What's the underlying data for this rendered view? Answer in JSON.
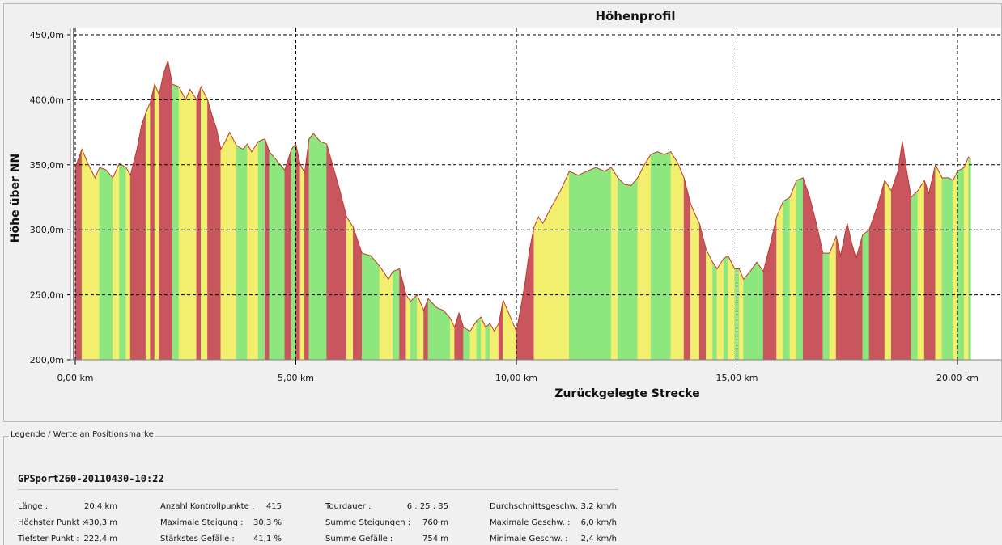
{
  "chart_data": {
    "type": "area",
    "title": "Höhenprofil",
    "xlabel": "Zurückgelegte Strecke",
    "ylabel": "Höhe über NN",
    "xlim": [
      0,
      20.3
    ],
    "ylim": [
      200,
      450
    ],
    "x_ticks": [
      {
        "value": 0,
        "label": "0,00 km"
      },
      {
        "value": 5,
        "label": "5,00 km"
      },
      {
        "value": 10,
        "label": "10,00 km"
      },
      {
        "value": 15,
        "label": "15,00 km"
      },
      {
        "value": 20,
        "label": "20,00 km"
      }
    ],
    "y_ticks": [
      {
        "value": 200,
        "label": "200,0m"
      },
      {
        "value": 250,
        "label": "250,0m"
      },
      {
        "value": 300,
        "label": "300,0m"
      },
      {
        "value": 350,
        "label": "350,0m"
      },
      {
        "value": 400,
        "label": "400,0m"
      },
      {
        "value": 450,
        "label": "450,0m"
      }
    ],
    "grid": true,
    "points": [
      [
        0.0,
        348
      ],
      [
        0.15,
        362
      ],
      [
        0.3,
        350
      ],
      [
        0.45,
        340
      ],
      [
        0.55,
        348
      ],
      [
        0.7,
        346
      ],
      [
        0.85,
        340
      ],
      [
        1.0,
        351
      ],
      [
        1.1,
        349
      ],
      [
        1.15,
        348
      ],
      [
        1.25,
        342
      ],
      [
        1.4,
        362
      ],
      [
        1.5,
        380
      ],
      [
        1.6,
        390
      ],
      [
        1.7,
        398
      ],
      [
        1.8,
        412
      ],
      [
        1.9,
        404
      ],
      [
        2.0,
        420
      ],
      [
        2.1,
        430
      ],
      [
        2.2,
        412
      ],
      [
        2.35,
        410
      ],
      [
        2.5,
        400
      ],
      [
        2.6,
        408
      ],
      [
        2.75,
        400
      ],
      [
        2.85,
        410
      ],
      [
        3.0,
        400
      ],
      [
        3.1,
        388
      ],
      [
        3.2,
        378
      ],
      [
        3.3,
        362
      ],
      [
        3.4,
        368
      ],
      [
        3.5,
        375
      ],
      [
        3.65,
        365
      ],
      [
        3.8,
        362
      ],
      [
        3.9,
        366
      ],
      [
        4.0,
        360
      ],
      [
        4.15,
        368
      ],
      [
        4.3,
        370
      ],
      [
        4.4,
        360
      ],
      [
        4.6,
        352
      ],
      [
        4.75,
        346
      ],
      [
        4.9,
        362
      ],
      [
        5.0,
        366
      ],
      [
        5.1,
        350
      ],
      [
        5.2,
        344
      ],
      [
        5.3,
        370
      ],
      [
        5.4,
        374
      ],
      [
        5.55,
        368
      ],
      [
        5.7,
        366
      ],
      [
        5.85,
        348
      ],
      [
        6.0,
        330
      ],
      [
        6.15,
        310
      ],
      [
        6.3,
        302
      ],
      [
        6.5,
        282
      ],
      [
        6.7,
        280
      ],
      [
        6.9,
        272
      ],
      [
        7.1,
        262
      ],
      [
        7.2,
        268
      ],
      [
        7.35,
        270
      ],
      [
        7.5,
        250
      ],
      [
        7.6,
        245
      ],
      [
        7.75,
        250
      ],
      [
        7.9,
        238
      ],
      [
        8.0,
        247
      ],
      [
        8.2,
        240
      ],
      [
        8.35,
        238
      ],
      [
        8.5,
        232
      ],
      [
        8.6,
        225
      ],
      [
        8.7,
        236
      ],
      [
        8.8,
        225
      ],
      [
        8.95,
        222
      ],
      [
        9.1,
        230
      ],
      [
        9.2,
        233
      ],
      [
        9.3,
        225
      ],
      [
        9.4,
        228
      ],
      [
        9.5,
        222
      ],
      [
        9.6,
        228
      ],
      [
        9.7,
        246
      ],
      [
        9.8,
        238
      ],
      [
        9.9,
        230
      ],
      [
        10.0,
        222
      ],
      [
        10.1,
        240
      ],
      [
        10.2,
        260
      ],
      [
        10.3,
        285
      ],
      [
        10.4,
        302
      ],
      [
        10.5,
        310
      ],
      [
        10.6,
        305
      ],
      [
        10.8,
        318
      ],
      [
        11.0,
        330
      ],
      [
        11.2,
        345
      ],
      [
        11.4,
        342
      ],
      [
        11.6,
        345
      ],
      [
        11.8,
        348
      ],
      [
        12.0,
        345
      ],
      [
        12.15,
        348
      ],
      [
        12.3,
        340
      ],
      [
        12.45,
        335
      ],
      [
        12.6,
        334
      ],
      [
        12.75,
        340
      ],
      [
        12.9,
        350
      ],
      [
        13.05,
        358
      ],
      [
        13.2,
        360
      ],
      [
        13.35,
        358
      ],
      [
        13.5,
        360
      ],
      [
        13.65,
        352
      ],
      [
        13.8,
        340
      ],
      [
        13.95,
        320
      ],
      [
        14.05,
        312
      ],
      [
        14.15,
        305
      ],
      [
        14.3,
        285
      ],
      [
        14.45,
        275
      ],
      [
        14.55,
        270
      ],
      [
        14.7,
        278
      ],
      [
        14.8,
        280
      ],
      [
        14.95,
        270
      ],
      [
        15.05,
        270
      ],
      [
        15.15,
        262
      ],
      [
        15.3,
        268
      ],
      [
        15.45,
        275
      ],
      [
        15.6,
        268
      ],
      [
        15.75,
        288
      ],
      [
        15.9,
        310
      ],
      [
        16.05,
        322
      ],
      [
        16.2,
        325
      ],
      [
        16.35,
        338
      ],
      [
        16.5,
        340
      ],
      [
        16.65,
        325
      ],
      [
        16.8,
        305
      ],
      [
        16.95,
        282
      ],
      [
        17.1,
        282
      ],
      [
        17.25,
        295
      ],
      [
        17.35,
        280
      ],
      [
        17.5,
        305
      ],
      [
        17.6,
        290
      ],
      [
        17.7,
        278
      ],
      [
        17.85,
        296
      ],
      [
        18.0,
        300
      ],
      [
        18.2,
        320
      ],
      [
        18.35,
        338
      ],
      [
        18.5,
        330
      ],
      [
        18.65,
        345
      ],
      [
        18.75,
        368
      ],
      [
        18.85,
        345
      ],
      [
        18.95,
        325
      ],
      [
        19.1,
        330
      ],
      [
        19.25,
        338
      ],
      [
        19.35,
        328
      ],
      [
        19.5,
        350
      ],
      [
        19.65,
        340
      ],
      [
        19.8,
        340
      ],
      [
        19.9,
        338
      ],
      [
        20.0,
        345
      ],
      [
        20.15,
        348
      ],
      [
        20.25,
        356
      ],
      [
        20.3,
        354
      ]
    ]
  },
  "legend": {
    "caption": "Legende / Werte an Positionsmarke",
    "track_name": "GPSport260-20110430-10:22",
    "stats": [
      {
        "label": "Länge :",
        "value": "20,4 km"
      },
      {
        "label": "Höchster Punkt :",
        "value": "430,3 m"
      },
      {
        "label": "Tiefster Punkt :",
        "value": "222,4 m"
      },
      {
        "label": "Anzahl Kontrollpunkte :",
        "value": "415"
      },
      {
        "label": "Maximale Steigung :",
        "value": "30,3 %"
      },
      {
        "label": "Stärkstes Gefälle :",
        "value": "41,1 %"
      },
      {
        "label": "Tourdauer :",
        "value": "6 : 25 : 35"
      },
      {
        "label": "Summe Steigungen :",
        "value": "760 m"
      },
      {
        "label": "Summe Gefälle :",
        "value": "754 m"
      },
      {
        "label": "Durchschnittsgeschw. :",
        "value": "3,2 km/h"
      },
      {
        "label": "Maximale Geschw. :",
        "value": "6,0 km/h"
      },
      {
        "label": "Minimale Geschw. :",
        "value": "2,4 km/h"
      }
    ]
  },
  "colors": {
    "flat": "#8ee67f",
    "moderate": "#f2ee6e",
    "steep": "#c9565f",
    "outline": "#c0392b",
    "grid": "#000000",
    "plot_bg": "#ffffff"
  }
}
